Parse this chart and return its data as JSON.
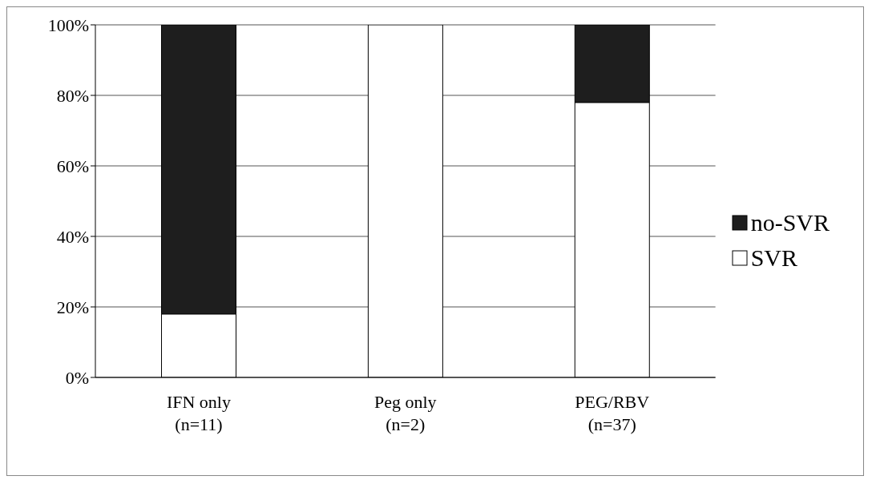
{
  "chart_data": {
    "type": "bar",
    "stacked": true,
    "categories": [
      "IFN only\n(n=11)",
      "Peg only\n(n=2)",
      "PEG/RBV\n(n=37)"
    ],
    "series": [
      {
        "name": "SVR",
        "color": "#ffffff",
        "values": [
          18,
          100,
          78
        ]
      },
      {
        "name": "no-SVR",
        "color": "#1e1e1e",
        "values": [
          82,
          0,
          22
        ]
      }
    ],
    "ylim": [
      0,
      100
    ],
    "yticks": [
      {
        "value": 0,
        "label": "0%"
      },
      {
        "value": 20,
        "label": "20%"
      },
      {
        "value": 40,
        "label": "40%"
      },
      {
        "value": 60,
        "label": "60%"
      },
      {
        "value": 80,
        "label": "80%"
      },
      {
        "value": 100,
        "label": "100%"
      }
    ],
    "grid": "y",
    "legend": "right"
  }
}
